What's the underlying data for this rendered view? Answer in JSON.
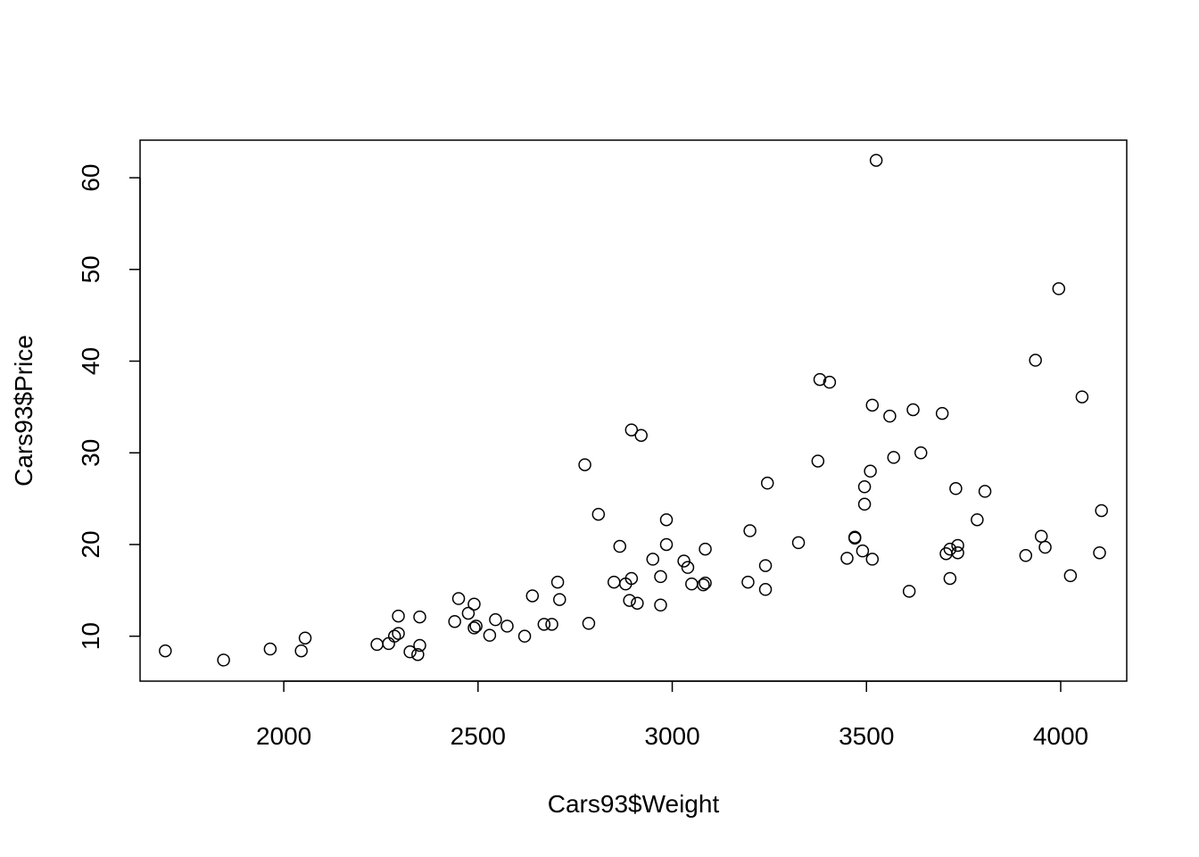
{
  "chart_data": {
    "type": "scatter",
    "title": "",
    "xlabel": "Cars93$Weight",
    "ylabel": "Cars93$Price",
    "xlim": [
      1630,
      4170
    ],
    "ylim": [
      5.1,
      64.1
    ],
    "xticks": [
      2000,
      2500,
      3000,
      3500,
      4000
    ],
    "yticks": [
      10,
      20,
      30,
      40,
      50,
      60
    ],
    "grid": false,
    "legend": "none",
    "marker": "open-circle",
    "color": "#000000",
    "points": [
      [
        1695,
        8.4
      ],
      [
        1845,
        7.4
      ],
      [
        1965,
        8.6
      ],
      [
        2045,
        8.4
      ],
      [
        2055,
        9.8
      ],
      [
        2240,
        9.1
      ],
      [
        2270,
        9.2
      ],
      [
        2285,
        10.0
      ],
      [
        2295,
        10.3
      ],
      [
        2295,
        12.2
      ],
      [
        2325,
        8.3
      ],
      [
        2345,
        8.0
      ],
      [
        2350,
        9.0
      ],
      [
        2350,
        12.1
      ],
      [
        2440,
        11.6
      ],
      [
        2450,
        14.1
      ],
      [
        2475,
        12.5
      ],
      [
        2490,
        10.9
      ],
      [
        2490,
        13.5
      ],
      [
        2495,
        11.1
      ],
      [
        2530,
        10.1
      ],
      [
        2545,
        11.8
      ],
      [
        2575,
        11.1
      ],
      [
        2620,
        10.0
      ],
      [
        2640,
        14.4
      ],
      [
        2670,
        11.3
      ],
      [
        2690,
        11.3
      ],
      [
        2705,
        15.9
      ],
      [
        2710,
        14.0
      ],
      [
        2775,
        28.7
      ],
      [
        2785,
        11.4
      ],
      [
        2810,
        23.3
      ],
      [
        2850,
        15.9
      ],
      [
        2865,
        19.8
      ],
      [
        2880,
        15.7
      ],
      [
        2890,
        13.9
      ],
      [
        2895,
        16.3
      ],
      [
        2895,
        32.5
      ],
      [
        2910,
        13.6
      ],
      [
        2920,
        31.9
      ],
      [
        2950,
        18.4
      ],
      [
        2970,
        16.5
      ],
      [
        2970,
        13.4
      ],
      [
        2985,
        22.7
      ],
      [
        2985,
        20.0
      ],
      [
        3030,
        18.2
      ],
      [
        3040,
        17.5
      ],
      [
        3050,
        15.7
      ],
      [
        3080,
        15.6
      ],
      [
        3085,
        15.8
      ],
      [
        3085,
        19.5
      ],
      [
        3195,
        15.9
      ],
      [
        3200,
        21.5
      ],
      [
        3240,
        17.7
      ],
      [
        3240,
        15.1
      ],
      [
        3245,
        26.7
      ],
      [
        3325,
        20.2
      ],
      [
        3375,
        29.1
      ],
      [
        3380,
        38.0
      ],
      [
        3405,
        37.7
      ],
      [
        3450,
        18.5
      ],
      [
        3470,
        20.7
      ],
      [
        3470,
        20.8
      ],
      [
        3490,
        19.3
      ],
      [
        3495,
        26.3
      ],
      [
        3495,
        24.4
      ],
      [
        3510,
        28.0
      ],
      [
        3515,
        18.4
      ],
      [
        3515,
        35.2
      ],
      [
        3525,
        61.9
      ],
      [
        3560,
        34.0
      ],
      [
        3570,
        29.5
      ],
      [
        3610,
        14.9
      ],
      [
        3620,
        34.7
      ],
      [
        3640,
        30.0
      ],
      [
        3695,
        34.3
      ],
      [
        3705,
        19.0
      ],
      [
        3715,
        19.5
      ],
      [
        3715,
        16.3
      ],
      [
        3730,
        26.1
      ],
      [
        3735,
        19.1
      ],
      [
        3735,
        19.9
      ],
      [
        3785,
        22.7
      ],
      [
        3805,
        25.8
      ],
      [
        3910,
        18.8
      ],
      [
        3935,
        40.1
      ],
      [
        3950,
        20.9
      ],
      [
        3960,
        19.7
      ],
      [
        3995,
        47.9
      ],
      [
        4025,
        16.6
      ],
      [
        4055,
        36.1
      ],
      [
        4100,
        19.1
      ],
      [
        4105,
        23.7
      ]
    ]
  }
}
